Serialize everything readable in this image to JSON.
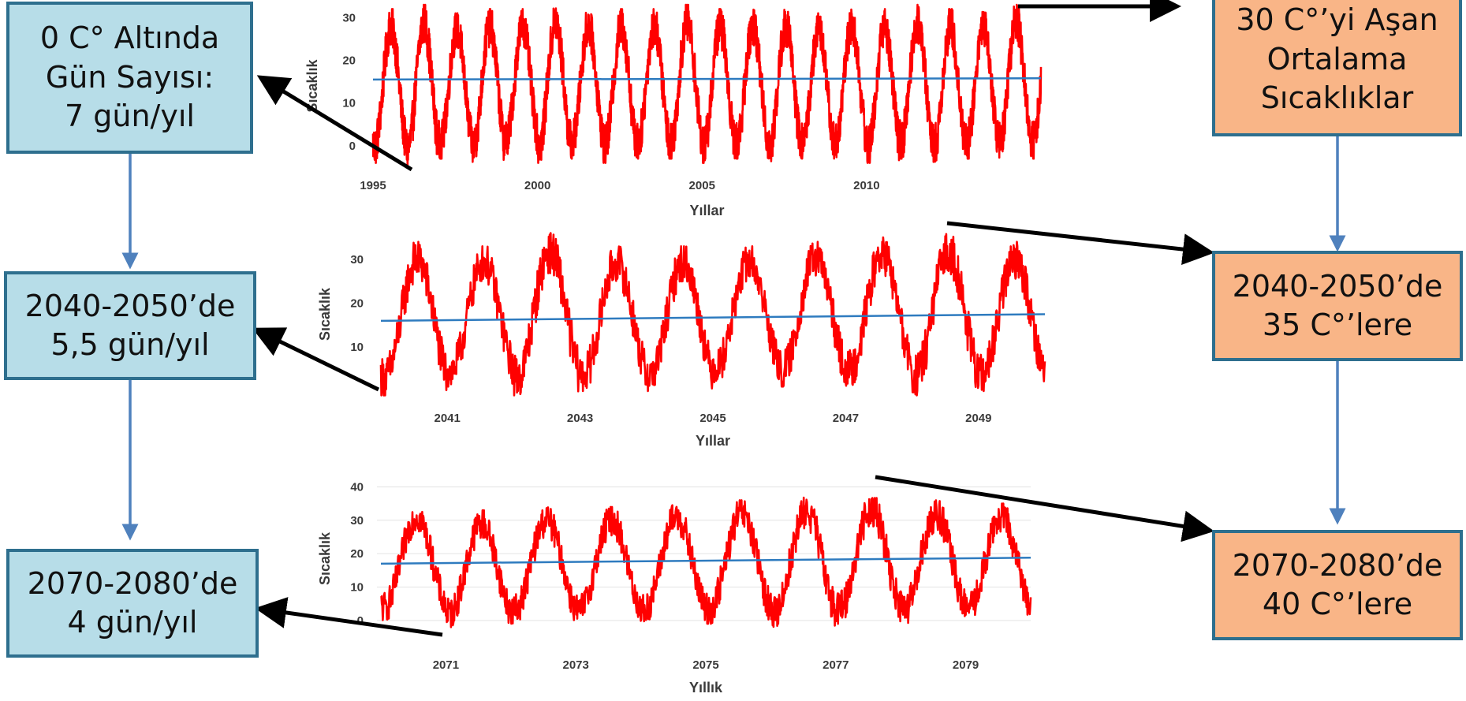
{
  "colors": {
    "series_line": "#ff0000",
    "trend_line": "#2e7bbf",
    "box_blue_fill": "#b7dde8",
    "box_orange_fill": "#f9b587",
    "box_border": "#2e6f8e",
    "flow_arrow": "#4f81bd",
    "callout_arrow": "#000000",
    "gridline": "#e3e3e3"
  },
  "left_boxes": [
    {
      "lines": [
        "0 C° Altında",
        "Gün Sayısı:",
        "7 gün/yıl"
      ]
    },
    {
      "lines": [
        "2040-2050’de",
        "5,5 gün/yıl"
      ]
    },
    {
      "lines": [
        "2070-2080’de",
        "4 gün/yıl"
      ]
    }
  ],
  "right_boxes": [
    {
      "lines": [
        "30 C°’yi Aşan",
        "Ortalama",
        "Sıcaklıklar"
      ]
    },
    {
      "lines": [
        "2040-2050’de",
        "35 C°’lere"
      ]
    },
    {
      "lines": [
        "2070-2080’de",
        "40 C°’lere"
      ]
    }
  ],
  "chart_data": [
    {
      "type": "line",
      "xlabel": "Yıllar",
      "ylabel": "Sıcaklık",
      "x_range": [
        1995,
        2015.3
      ],
      "ylim": [
        -5,
        33
      ],
      "y_ticks": [
        0,
        10,
        20,
        30
      ],
      "x_ticks": [
        1995,
        2000,
        2005,
        2010
      ],
      "grid": false,
      "series": [
        {
          "x_start": 1995,
          "cycles": 20,
          "peak_values": [
            32,
            33,
            31,
            32,
            32,
            33,
            32,
            32,
            32,
            33,
            32,
            32,
            32,
            31,
            32,
            32,
            33,
            32,
            32,
            33
          ],
          "trough_values": [
            -4,
            -5,
            -3,
            -4,
            -2,
            -4,
            -3,
            -4,
            -3,
            -3,
            -4,
            -3,
            -4,
            -3,
            -3,
            -4,
            -3,
            -4,
            -3,
            -3
          ]
        },
        {
          "trend": [
            15.5,
            15.8
          ]
        }
      ]
    },
    {
      "type": "line",
      "xlabel": "Yıllar",
      "ylabel": "Sıcaklık",
      "x_range": [
        2040,
        2050
      ],
      "ylim": [
        -2,
        37
      ],
      "y_ticks": [
        10,
        20,
        30
      ],
      "x_ticks": [
        2041,
        2043,
        2045,
        2047,
        2049
      ],
      "grid": false,
      "series": [
        {
          "x_start": 2040,
          "cycles": 10,
          "peak_values": [
            34,
            33,
            36,
            33,
            33,
            33,
            34,
            35,
            36,
            34
          ],
          "trough_values": [
            -1,
            1,
            -1,
            0,
            0,
            2,
            1,
            1,
            -1,
            0
          ]
        },
        {
          "trend": [
            16.0,
            17.5
          ]
        }
      ]
    },
    {
      "type": "line",
      "xlabel": "Yıllık",
      "ylabel": "Sıcaklık",
      "x_range": [
        2070,
        2080
      ],
      "ylim": [
        -5,
        42
      ],
      "y_ticks": [
        0,
        10,
        20,
        30,
        40
      ],
      "x_ticks": [
        2071,
        2073,
        2075,
        2077,
        2079
      ],
      "grid": true,
      "series": [
        {
          "x_start": 2070,
          "cycles": 10,
          "peak_values": [
            35,
            33,
            34,
            34,
            35,
            36,
            37,
            38,
            36,
            35
          ],
          "trough_values": [
            0,
            -2,
            -1,
            -1,
            -1,
            -1,
            -2,
            -1,
            -1,
            0
          ]
        },
        {
          "trend": [
            17.0,
            18.8
          ]
        }
      ]
    }
  ]
}
